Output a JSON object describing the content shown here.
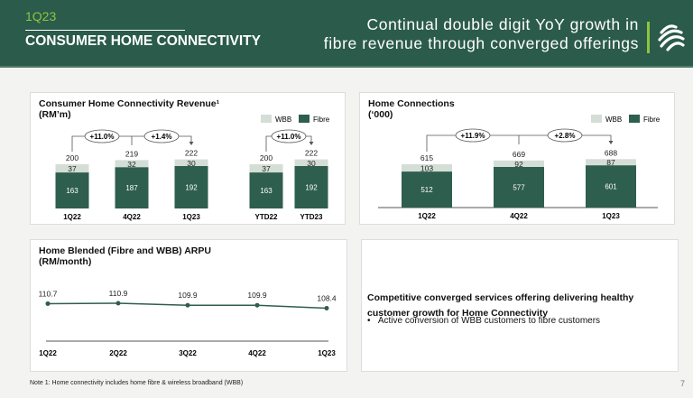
{
  "header": {
    "period": "1Q23",
    "section": "CONSUMER HOME CONNECTIVITY",
    "tagline_line1": "Continual double digit YoY growth in",
    "tagline_line2": "fibre revenue through converged offerings"
  },
  "colors": {
    "header_bg": "#2b5b4b",
    "accent": "#8dc63f",
    "fibre": "#2e5e4e",
    "wbb": "#d4ded6"
  },
  "chart_data": [
    {
      "type": "bar",
      "stacked": true,
      "title": "Consumer Home Connectivity Revenue¹",
      "unit": "(RM’m)",
      "legend": [
        "WBB",
        "Fibre"
      ],
      "legend_position": "top-right",
      "categories": [
        "1Q22",
        "4Q22",
        "1Q23",
        "YTD22",
        "YTD23"
      ],
      "series": [
        {
          "name": "Fibre",
          "values": [
            163,
            187,
            192,
            163,
            192
          ]
        },
        {
          "name": "WBB",
          "values": [
            37,
            32,
            30,
            37,
            30
          ]
        }
      ],
      "totals": [
        200,
        219,
        222,
        200,
        222
      ],
      "growth": [
        {
          "from": "1Q22",
          "to": "1Q23",
          "label": "+11.0%"
        },
        {
          "from": "4Q22",
          "to": "1Q23",
          "label": "+1.4%"
        },
        {
          "from": "YTD22",
          "to": "YTD23",
          "label": "+11.0%"
        }
      ]
    },
    {
      "type": "bar",
      "stacked": true,
      "title": "Home Connections",
      "unit": "(‘000)",
      "legend": [
        "WBB",
        "Fibre"
      ],
      "legend_position": "top-right",
      "categories": [
        "1Q22",
        "4Q22",
        "1Q23"
      ],
      "series": [
        {
          "name": "Fibre",
          "values": [
            512,
            577,
            601
          ]
        },
        {
          "name": "WBB",
          "values": [
            103,
            92,
            87
          ]
        }
      ],
      "totals": [
        615,
        669,
        688
      ],
      "growth": [
        {
          "from": "1Q22",
          "to": "1Q23",
          "label": "+11.9%"
        },
        {
          "from": "4Q22",
          "to": "1Q23",
          "label": "+2.8%"
        }
      ]
    },
    {
      "type": "line",
      "title": "Home Blended (Fibre and WBB) ARPU",
      "unit": "(RM/month)",
      "categories": [
        "1Q22",
        "2Q22",
        "3Q22",
        "4Q22",
        "1Q23"
      ],
      "values": [
        110.7,
        110.9,
        109.9,
        109.9,
        108.4
      ]
    }
  ],
  "commentary": {
    "headline": "Competitive converged services offering delivering healthy customer growth for Home Connectivity",
    "bullet": "Active conversion of WBB customers to fibre customers"
  },
  "footer": {
    "note": "Note 1: Home connectivity includes home fibre & wireless broadband (WBB)",
    "page": "7"
  }
}
